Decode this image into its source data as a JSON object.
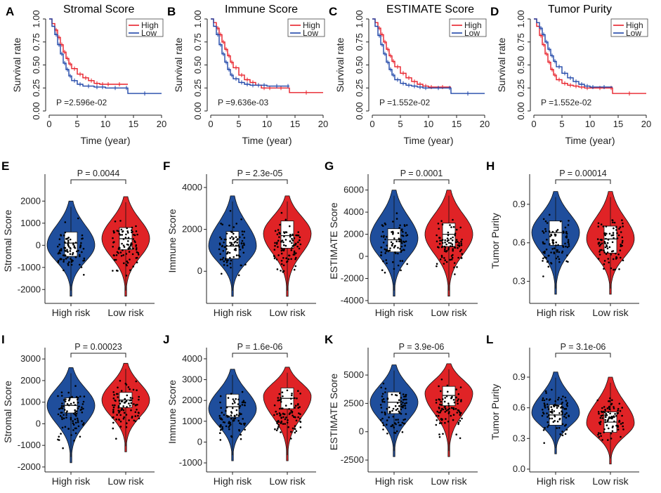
{
  "figure": {
    "colors": {
      "high": "#e8202a",
      "low": "#1f46a8",
      "violin_high_risk": "#1f4e9c",
      "violin_low_risk": "#e02326"
    }
  },
  "chart_data": [
    {
      "type": "line",
      "panel": "A",
      "title": "Stromal Score",
      "xlabel": "Time (year)",
      "ylabel": "Survival rate",
      "xlim": [
        0,
        20
      ],
      "ylim": [
        0,
        1
      ],
      "xticks": [
        "0",
        "5",
        "10",
        "15",
        "20"
      ],
      "yticks": [
        "0.00",
        "0.25",
        "0.50",
        "0.75",
        "1.00"
      ],
      "legend": [
        "High",
        "Low"
      ],
      "pvalue_text": "P =2.596e-02",
      "series": [
        {
          "name": "High",
          "x": [
            0,
            0.5,
            1,
            1.5,
            2,
            2.5,
            3,
            3.5,
            4,
            5,
            6,
            7,
            8,
            9,
            10,
            11,
            14
          ],
          "y": [
            1,
            0.95,
            0.88,
            0.8,
            0.72,
            0.64,
            0.57,
            0.51,
            0.46,
            0.4,
            0.36,
            0.33,
            0.3,
            0.29,
            0.29,
            0.29,
            0.29
          ]
        },
        {
          "name": "Low",
          "x": [
            0,
            0.5,
            1,
            1.5,
            2,
            2.5,
            3,
            3.5,
            4,
            5,
            6,
            8,
            9,
            10,
            13.5,
            14,
            20
          ],
          "y": [
            1,
            0.92,
            0.83,
            0.72,
            0.62,
            0.52,
            0.45,
            0.38,
            0.33,
            0.29,
            0.27,
            0.26,
            0.26,
            0.25,
            0.25,
            0.19,
            0.19
          ]
        }
      ]
    },
    {
      "type": "line",
      "panel": "B",
      "title": "Immune Score",
      "xlabel": "Time (year)",
      "ylabel": "Survival rate",
      "xlim": [
        0,
        20
      ],
      "ylim": [
        0,
        1
      ],
      "xticks": [
        "0",
        "5",
        "10",
        "15",
        "20"
      ],
      "yticks": [
        "0.00",
        "0.25",
        "0.50",
        "0.75",
        "1.00"
      ],
      "legend": [
        "High",
        "Low"
      ],
      "pvalue_text": "P =9.636e-03",
      "series": [
        {
          "name": "High",
          "x": [
            0,
            0.5,
            1,
            1.5,
            2,
            2.5,
            3,
            3.5,
            4,
            5,
            6,
            7,
            8,
            9,
            10,
            11,
            14,
            20
          ],
          "y": [
            1,
            0.96,
            0.9,
            0.83,
            0.75,
            0.67,
            0.6,
            0.53,
            0.47,
            0.39,
            0.34,
            0.31,
            0.28,
            0.25,
            0.25,
            0.25,
            0.2,
            0.2
          ]
        },
        {
          "name": "Low",
          "x": [
            0,
            0.5,
            1,
            1.5,
            2,
            2.5,
            3,
            3.5,
            4,
            5,
            6,
            7,
            8,
            9,
            10,
            13.5,
            14
          ],
          "y": [
            1,
            0.92,
            0.83,
            0.72,
            0.62,
            0.53,
            0.45,
            0.39,
            0.35,
            0.31,
            0.29,
            0.28,
            0.28,
            0.28,
            0.27,
            0.27,
            0.27
          ]
        }
      ]
    },
    {
      "type": "line",
      "panel": "C",
      "title": "ESTIMATE Score",
      "xlabel": "Time (year)",
      "ylabel": "Survival rate",
      "xlim": [
        0,
        20
      ],
      "ylim": [
        0,
        1
      ],
      "xticks": [
        "0",
        "5",
        "10",
        "15",
        "20"
      ],
      "yticks": [
        "0.00",
        "0.25",
        "0.50",
        "0.75",
        "1.00"
      ],
      "legend": [
        "High",
        "Low"
      ],
      "pvalue_text": "P =1.552e-02",
      "series": [
        {
          "name": "High",
          "x": [
            0,
            0.5,
            1,
            1.5,
            2,
            2.5,
            3,
            3.5,
            4,
            5,
            6,
            7,
            8,
            9,
            10,
            11,
            14
          ],
          "y": [
            1,
            0.96,
            0.9,
            0.83,
            0.75,
            0.67,
            0.6,
            0.54,
            0.48,
            0.41,
            0.36,
            0.32,
            0.29,
            0.27,
            0.26,
            0.26,
            0.26
          ]
        },
        {
          "name": "Low",
          "x": [
            0,
            0.5,
            1,
            1.5,
            2,
            2.5,
            3,
            3.5,
            4,
            5,
            6,
            7,
            8,
            9,
            10,
            13.5,
            14,
            20
          ],
          "y": [
            1,
            0.92,
            0.82,
            0.72,
            0.62,
            0.53,
            0.45,
            0.39,
            0.34,
            0.3,
            0.28,
            0.27,
            0.26,
            0.25,
            0.25,
            0.25,
            0.19,
            0.19
          ]
        }
      ]
    },
    {
      "type": "line",
      "panel": "D",
      "title": "Tumor Purity",
      "xlabel": "Time (year)",
      "ylabel": "Survival rate",
      "xlim": [
        0,
        20
      ],
      "ylim": [
        0,
        1
      ],
      "xticks": [
        "0",
        "5",
        "10",
        "15",
        "20"
      ],
      "yticks": [
        "0.00",
        "0.25",
        "0.50",
        "0.75",
        "1.00"
      ],
      "legend": [
        "High",
        "Low"
      ],
      "pvalue_text": "P =1.552e-02",
      "series": [
        {
          "name": "High",
          "x": [
            0,
            0.5,
            1,
            1.5,
            2,
            2.5,
            3,
            3.5,
            4,
            5,
            6,
            7,
            8,
            9,
            10,
            13.5,
            14,
            20
          ],
          "y": [
            1,
            0.92,
            0.82,
            0.72,
            0.62,
            0.53,
            0.45,
            0.39,
            0.34,
            0.3,
            0.28,
            0.27,
            0.26,
            0.25,
            0.25,
            0.25,
            0.19,
            0.19
          ]
        },
        {
          "name": "Low",
          "x": [
            0,
            0.5,
            1,
            1.5,
            2,
            2.5,
            3,
            3.5,
            4,
            5,
            6,
            7,
            8,
            9,
            10,
            11,
            14
          ],
          "y": [
            1,
            0.96,
            0.9,
            0.83,
            0.75,
            0.67,
            0.6,
            0.54,
            0.48,
            0.41,
            0.36,
            0.32,
            0.29,
            0.27,
            0.26,
            0.26,
            0.26
          ]
        }
      ]
    },
    {
      "type": "violin",
      "panel": "E",
      "ylabel": "Stromal Score",
      "categories": [
        "High risk",
        "Low risk"
      ],
      "ylim": [
        -2500,
        2900
      ],
      "yticks": [
        -2000,
        -1000,
        0,
        1000,
        2000
      ],
      "ytick_labels": [
        "-2000",
        "-1000",
        "0",
        "1000",
        "2000"
      ],
      "pvalue_text": "P = 0.0044",
      "groups": [
        {
          "name": "High risk",
          "min": -2300,
          "q1": -500,
          "median": 100,
          "q3": 600,
          "max": 2000,
          "mode": 0
        },
        {
          "name": "Low risk",
          "min": -2300,
          "q1": -200,
          "median": 300,
          "q3": 800,
          "max": 2200,
          "mode": 300
        }
      ]
    },
    {
      "type": "violin",
      "panel": "F",
      "ylabel": "Immune Score",
      "categories": [
        "High risk",
        "Low risk"
      ],
      "ylim": [
        -1400,
        4300
      ],
      "yticks": [
        0,
        2000,
        4000
      ],
      "ytick_labels": [
        "0",
        "2000",
        "4000"
      ],
      "pvalue_text": "P = 2.3e-05",
      "groups": [
        {
          "name": "High risk",
          "min": -1200,
          "q1": 600,
          "median": 1200,
          "q3": 1900,
          "max": 3600,
          "mode": 1200
        },
        {
          "name": "Low risk",
          "min": -1200,
          "q1": 1100,
          "median": 1700,
          "q3": 2400,
          "max": 3600,
          "mode": 1800
        }
      ]
    },
    {
      "type": "violin",
      "panel": "G",
      "ylabel": "ESTIMATE Score",
      "categories": [
        "High risk",
        "Low risk"
      ],
      "ylim": [
        -4000,
        6800
      ],
      "yticks": [
        -4000,
        -2000,
        0,
        2000,
        4000,
        6000
      ],
      "ytick_labels": [
        "-4000",
        "-2000",
        "0",
        "2000",
        "4000",
        "6000"
      ],
      "pvalue_text": "P = 0.0001",
      "groups": [
        {
          "name": "High risk",
          "min": -3600,
          "q1": 400,
          "median": 1500,
          "q3": 2500,
          "max": 6000,
          "mode": 1600
        },
        {
          "name": "Low risk",
          "min": -3600,
          "q1": 900,
          "median": 2000,
          "q3": 3000,
          "max": 6000,
          "mode": 2000
        }
      ]
    },
    {
      "type": "violin",
      "panel": "H",
      "ylabel": "Tumor Purity",
      "categories": [
        "High risk",
        "Low risk"
      ],
      "ylim": [
        0.15,
        1.08
      ],
      "yticks": [
        0.3,
        0.6,
        0.9
      ],
      "ytick_labels": [
        "0.3",
        "0.6",
        "0.9"
      ],
      "pvalue_text": "P = 0.00014",
      "groups": [
        {
          "name": "High risk",
          "min": 0.2,
          "q1": 0.58,
          "median": 0.68,
          "q3": 0.77,
          "max": 1.0,
          "mode": 0.68
        },
        {
          "name": "Low risk",
          "min": 0.2,
          "q1": 0.52,
          "median": 0.63,
          "q3": 0.73,
          "max": 1.0,
          "mode": 0.63
        }
      ]
    },
    {
      "type": "violin",
      "panel": "I",
      "ylabel": "Stromal Score",
      "categories": [
        "High risk",
        "Low risk"
      ],
      "ylim": [
        -2100,
        3200
      ],
      "yticks": [
        -2000,
        -1000,
        0,
        1000,
        2000,
        3000
      ],
      "ytick_labels": [
        "-2000",
        "-1000",
        "0",
        "1000",
        "2000",
        "3000"
      ],
      "pvalue_text": "P = 0.00023",
      "groups": [
        {
          "name": "High risk",
          "min": -1800,
          "q1": 500,
          "median": 850,
          "q3": 1200,
          "max": 2600,
          "mode": 850
        },
        {
          "name": "Low risk",
          "min": -1300,
          "q1": 750,
          "median": 1100,
          "q3": 1450,
          "max": 2800,
          "mode": 1100
        }
      ]
    },
    {
      "type": "violin",
      "panel": "J",
      "ylabel": "Immune Score",
      "categories": [
        "High risk",
        "Low risk"
      ],
      "ylim": [
        -1300,
        4200
      ],
      "yticks": [
        -1000,
        0,
        1000,
        2000,
        3000,
        4000
      ],
      "ytick_labels": [
        "-1000",
        "0",
        "1000",
        "2000",
        "3000",
        "4000"
      ],
      "pvalue_text": "P = 1.6e-06",
      "groups": [
        {
          "name": "High risk",
          "min": -900,
          "q1": 1200,
          "median": 1700,
          "q3": 2300,
          "max": 3500,
          "mode": 1600
        },
        {
          "name": "Low risk",
          "min": -900,
          "q1": 1600,
          "median": 2100,
          "q3": 2600,
          "max": 3600,
          "mode": 2200
        }
      ]
    },
    {
      "type": "violin",
      "panel": "K",
      "ylabel": "ESTIMATE Score",
      "categories": [
        "High risk",
        "Low risk"
      ],
      "ylim": [
        -3300,
        6800
      ],
      "yticks": [
        -2500,
        0,
        2500,
        5000
      ],
      "ytick_labels": [
        "-2500",
        "0",
        "2500",
        "5000"
      ],
      "pvalue_text": "P = 3.9e-06",
      "groups": [
        {
          "name": "High risk",
          "min": -2200,
          "q1": 1600,
          "median": 2600,
          "q3": 3500,
          "max": 5900,
          "mode": 2600
        },
        {
          "name": "Low risk",
          "min": -2200,
          "q1": 2300,
          "median": 3200,
          "q3": 4000,
          "max": 6000,
          "mode": 3400
        }
      ]
    },
    {
      "type": "violin",
      "panel": "L",
      "ylabel": "Tumor Purity",
      "categories": [
        "High risk",
        "Low risk"
      ],
      "ylim": [
        0.0,
        1.12
      ],
      "yticks": [
        0.0,
        0.3,
        0.6,
        0.9
      ],
      "ytick_labels": [
        "0.0",
        "0.3",
        "0.6",
        "0.9"
      ],
      "pvalue_text": "P = 3.1e-06",
      "groups": [
        {
          "name": "High risk",
          "min": 0.15,
          "q1": 0.43,
          "median": 0.53,
          "q3": 0.63,
          "max": 0.95,
          "mode": 0.55
        },
        {
          "name": "Low risk",
          "min": 0.05,
          "q1": 0.36,
          "median": 0.46,
          "q3": 0.56,
          "max": 0.9,
          "mode": 0.45
        }
      ]
    }
  ]
}
